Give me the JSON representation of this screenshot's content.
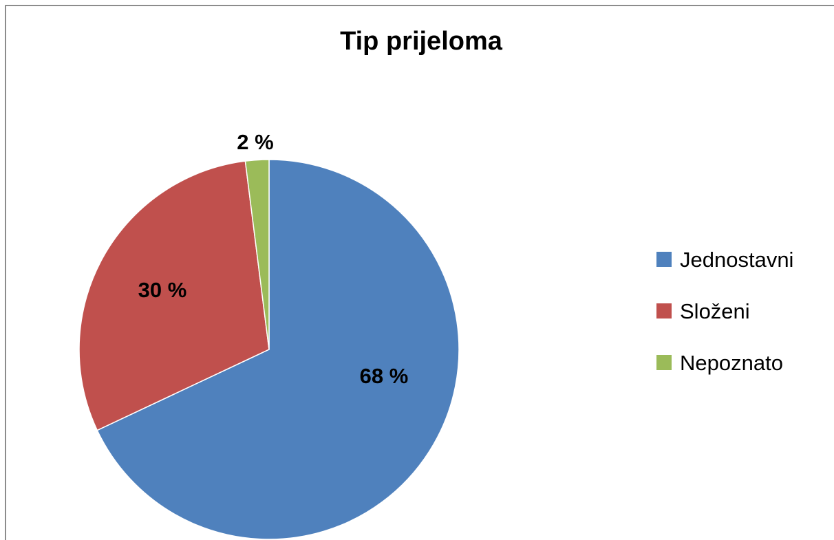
{
  "chart_data": {
    "type": "pie",
    "title": "Tip prijeloma",
    "categories": [
      "Jednostavni",
      "Složeni",
      "Nepoznato"
    ],
    "values": [
      68,
      30,
      2
    ],
    "data_labels": [
      "68 %",
      "30 %",
      "2 %"
    ],
    "colors": [
      "#4f81bd",
      "#c0504d",
      "#9bbb59"
    ],
    "legend": {
      "placement": "right",
      "entries": [
        "Jednostavni",
        "Složeni",
        "Nepoznato"
      ]
    },
    "start_angle": "12 o'clock",
    "direction": "clockwise"
  }
}
